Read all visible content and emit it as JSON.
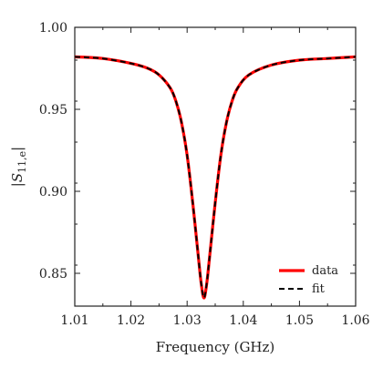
{
  "chart_data": {
    "type": "line",
    "xlabel": "Frequency (GHz)",
    "ylabel": "|S11,e|",
    "ylabel_main": "S",
    "ylabel_sub": "11,e",
    "xlim": [
      1.01,
      1.06
    ],
    "ylim": [
      0.83,
      1.0
    ],
    "xticks": [
      1.01,
      1.02,
      1.03,
      1.04,
      1.05,
      1.06
    ],
    "xtick_labels": [
      "1.01",
      "1.02",
      "1.03",
      "1.04",
      "1.05",
      "1.06"
    ],
    "yticks": [
      0.85,
      0.9,
      0.95,
      1.0
    ],
    "ytick_labels": [
      "0.85",
      "0.90",
      "0.95",
      "1.00"
    ],
    "grid": false,
    "legend_position": "bottom-right",
    "series": [
      {
        "name": "data",
        "color": "#ff0000",
        "style": "solid",
        "x": [
          1.01,
          1.015,
          1.02,
          1.023,
          1.025,
          1.027,
          1.028,
          1.029,
          1.03,
          1.031,
          1.032,
          1.0325,
          1.033,
          1.0335,
          1.034,
          1.035,
          1.036,
          1.037,
          1.038,
          1.039,
          1.041,
          1.045,
          1.05,
          1.055,
          1.06
        ],
        "y": [
          0.982,
          0.981,
          0.978,
          0.975,
          0.971,
          0.963,
          0.955,
          0.942,
          0.922,
          0.893,
          0.86,
          0.844,
          0.835,
          0.844,
          0.86,
          0.893,
          0.922,
          0.942,
          0.955,
          0.963,
          0.971,
          0.977,
          0.98,
          0.981,
          0.982
        ]
      },
      {
        "name": "fit",
        "color": "#000000",
        "style": "dashed",
        "x": [
          1.01,
          1.015,
          1.02,
          1.023,
          1.025,
          1.027,
          1.028,
          1.029,
          1.03,
          1.031,
          1.032,
          1.0325,
          1.033,
          1.0335,
          1.034,
          1.035,
          1.036,
          1.037,
          1.038,
          1.039,
          1.041,
          1.045,
          1.05,
          1.055,
          1.06
        ],
        "y": [
          0.982,
          0.981,
          0.978,
          0.975,
          0.971,
          0.963,
          0.955,
          0.942,
          0.922,
          0.893,
          0.86,
          0.844,
          0.835,
          0.844,
          0.86,
          0.893,
          0.922,
          0.942,
          0.955,
          0.963,
          0.971,
          0.977,
          0.98,
          0.981,
          0.982
        ]
      }
    ]
  }
}
